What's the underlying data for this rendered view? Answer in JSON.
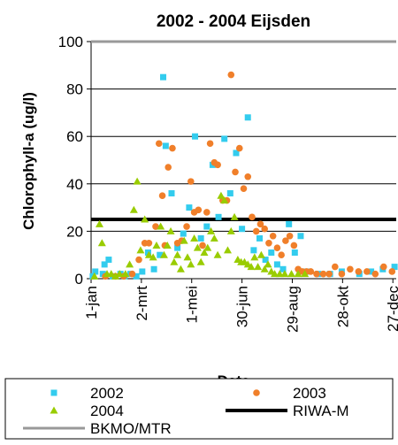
{
  "chart_data": {
    "type": "scatter",
    "title": "2002 - 2004 Eijsden",
    "xlabel": "Date",
    "ylabel": "Chlorophyll-a (ug/l)",
    "ylim": [
      0,
      100
    ],
    "xlim": [
      1,
      365
    ],
    "yticks": [
      0,
      20,
      40,
      60,
      80,
      100
    ],
    "xticks": [
      {
        "label": "1-jan",
        "day": 1
      },
      {
        "label": "2-mrt",
        "day": 61
      },
      {
        "label": "1-mei",
        "day": 121
      },
      {
        "label": "30-jun",
        "day": 181
      },
      {
        "label": "29-aug",
        "day": 241
      },
      {
        "label": "28-okt",
        "day": 301
      },
      {
        "label": "27-dec",
        "day": 361
      }
    ],
    "x_unit": "day of year",
    "grid": "horizontal",
    "legend_position": "bottom",
    "series": [
      {
        "name": "2002",
        "marker": "square",
        "color": "#33ccee",
        "points": [
          {
            "x": 3,
            "y": 1
          },
          {
            "x": 6,
            "y": 3
          },
          {
            "x": 15,
            "y": 2
          },
          {
            "x": 17,
            "y": 6
          },
          {
            "x": 22,
            "y": 8
          },
          {
            "x": 27,
            "y": 1
          },
          {
            "x": 36,
            "y": 2
          },
          {
            "x": 41,
            "y": 1
          },
          {
            "x": 48,
            "y": 2
          },
          {
            "x": 55,
            "y": 1
          },
          {
            "x": 62,
            "y": 3
          },
          {
            "x": 69,
            "y": 11
          },
          {
            "x": 76,
            "y": 4
          },
          {
            "x": 83,
            "y": 10
          },
          {
            "x": 87,
            "y": 85
          },
          {
            "x": 90,
            "y": 56
          },
          {
            "x": 97,
            "y": 36
          },
          {
            "x": 104,
            "y": 13
          },
          {
            "x": 111,
            "y": 19
          },
          {
            "x": 118,
            "y": 30
          },
          {
            "x": 125,
            "y": 60
          },
          {
            "x": 132,
            "y": 17
          },
          {
            "x": 139,
            "y": 22
          },
          {
            "x": 146,
            "y": 48
          },
          {
            "x": 153,
            "y": 26
          },
          {
            "x": 160,
            "y": 59
          },
          {
            "x": 167,
            "y": 36
          },
          {
            "x": 174,
            "y": 53
          },
          {
            "x": 181,
            "y": 21
          },
          {
            "x": 188,
            "y": 68
          },
          {
            "x": 195,
            "y": 12
          },
          {
            "x": 202,
            "y": 17
          },
          {
            "x": 209,
            "y": 8
          },
          {
            "x": 216,
            "y": 11
          },
          {
            "x": 223,
            "y": 6
          },
          {
            "x": 230,
            "y": 4
          },
          {
            "x": 237,
            "y": 23
          },
          {
            "x": 244,
            "y": 11
          },
          {
            "x": 251,
            "y": 18
          },
          {
            "x": 258,
            "y": 3
          },
          {
            "x": 272,
            "y": 2
          },
          {
            "x": 286,
            "y": 2
          },
          {
            "x": 300,
            "y": 3
          },
          {
            "x": 321,
            "y": 2
          },
          {
            "x": 335,
            "y": 3
          },
          {
            "x": 349,
            "y": 4
          },
          {
            "x": 363,
            "y": 5
          }
        ]
      },
      {
        "name": "2003",
        "marker": "circle",
        "color": "#f07f2a",
        "points": [
          {
            "x": 18,
            "y": 1
          },
          {
            "x": 30,
            "y": 1
          },
          {
            "x": 40,
            "y": 1
          },
          {
            "x": 50,
            "y": 2
          },
          {
            "x": 58,
            "y": 8
          },
          {
            "x": 65,
            "y": 15
          },
          {
            "x": 70,
            "y": 15
          },
          {
            "x": 78,
            "y": 22
          },
          {
            "x": 82,
            "y": 57
          },
          {
            "x": 86,
            "y": 35
          },
          {
            "x": 89,
            "y": 14
          },
          {
            "x": 93,
            "y": 47
          },
          {
            "x": 98,
            "y": 55
          },
          {
            "x": 104,
            "y": 15
          },
          {
            "x": 109,
            "y": 16
          },
          {
            "x": 115,
            "y": 22
          },
          {
            "x": 120,
            "y": 41
          },
          {
            "x": 124,
            "y": 28
          },
          {
            "x": 129,
            "y": 29
          },
          {
            "x": 134,
            "y": 14
          },
          {
            "x": 139,
            "y": 28
          },
          {
            "x": 143,
            "y": 57
          },
          {
            "x": 148,
            "y": 49
          },
          {
            "x": 152,
            "y": 48
          },
          {
            "x": 158,
            "y": 33
          },
          {
            "x": 163,
            "y": 33
          },
          {
            "x": 168,
            "y": 86
          },
          {
            "x": 173,
            "y": 45
          },
          {
            "x": 178,
            "y": 55
          },
          {
            "x": 183,
            "y": 38
          },
          {
            "x": 188,
            "y": 43
          },
          {
            "x": 193,
            "y": 26
          },
          {
            "x": 198,
            "y": 20
          },
          {
            "x": 203,
            "y": 23
          },
          {
            "x": 208,
            "y": 21
          },
          {
            "x": 213,
            "y": 15
          },
          {
            "x": 218,
            "y": 18
          },
          {
            "x": 223,
            "y": 13
          },
          {
            "x": 228,
            "y": 10
          },
          {
            "x": 233,
            "y": 16
          },
          {
            "x": 238,
            "y": 18
          },
          {
            "x": 243,
            "y": 14
          },
          {
            "x": 248,
            "y": 4
          },
          {
            "x": 253,
            "y": 3
          },
          {
            "x": 258,
            "y": 3
          },
          {
            "x": 263,
            "y": 3
          },
          {
            "x": 270,
            "y": 2
          },
          {
            "x": 278,
            "y": 2
          },
          {
            "x": 285,
            "y": 2
          },
          {
            "x": 292,
            "y": 5
          },
          {
            "x": 300,
            "y": 2
          },
          {
            "x": 310,
            "y": 4
          },
          {
            "x": 320,
            "y": 3
          },
          {
            "x": 330,
            "y": 3
          },
          {
            "x": 340,
            "y": 2
          },
          {
            "x": 350,
            "y": 5
          },
          {
            "x": 360,
            "y": 3
          }
        ]
      },
      {
        "name": "2004",
        "marker": "triangle",
        "color": "#99cc00",
        "points": [
          {
            "x": 5,
            "y": 1
          },
          {
            "x": 11,
            "y": 23
          },
          {
            "x": 14,
            "y": 15
          },
          {
            "x": 20,
            "y": 2
          },
          {
            "x": 25,
            "y": 2
          },
          {
            "x": 30,
            "y": 1
          },
          {
            "x": 35,
            "y": 2
          },
          {
            "x": 42,
            "y": 2
          },
          {
            "x": 47,
            "y": 6
          },
          {
            "x": 52,
            "y": 29
          },
          {
            "x": 56,
            "y": 41
          },
          {
            "x": 60,
            "y": 12
          },
          {
            "x": 65,
            "y": 25
          },
          {
            "x": 70,
            "y": 10
          },
          {
            "x": 75,
            "y": 9
          },
          {
            "x": 79,
            "y": 14
          },
          {
            "x": 84,
            "y": 22
          },
          {
            "x": 88,
            "y": 10
          },
          {
            "x": 92,
            "y": 14
          },
          {
            "x": 96,
            "y": 20
          },
          {
            "x": 100,
            "y": 7
          },
          {
            "x": 104,
            "y": 10
          },
          {
            "x": 108,
            "y": 4
          },
          {
            "x": 112,
            "y": 16
          },
          {
            "x": 116,
            "y": 9
          },
          {
            "x": 120,
            "y": 6
          },
          {
            "x": 124,
            "y": 17
          },
          {
            "x": 128,
            "y": 13
          },
          {
            "x": 132,
            "y": 7
          },
          {
            "x": 136,
            "y": 11
          },
          {
            "x": 140,
            "y": 13
          },
          {
            "x": 144,
            "y": 20
          },
          {
            "x": 148,
            "y": 17
          },
          {
            "x": 152,
            "y": 10
          },
          {
            "x": 156,
            "y": 35
          },
          {
            "x": 160,
            "y": 33
          },
          {
            "x": 164,
            "y": 12
          },
          {
            "x": 168,
            "y": 20
          },
          {
            "x": 172,
            "y": 26
          },
          {
            "x": 176,
            "y": 8
          },
          {
            "x": 180,
            "y": 7
          },
          {
            "x": 184,
            "y": 7
          },
          {
            "x": 188,
            "y": 6
          },
          {
            "x": 192,
            "y": 5
          },
          {
            "x": 196,
            "y": 9
          },
          {
            "x": 200,
            "y": 5
          },
          {
            "x": 204,
            "y": 10
          },
          {
            "x": 208,
            "y": 4
          },
          {
            "x": 212,
            "y": 6
          },
          {
            "x": 216,
            "y": 3
          },
          {
            "x": 220,
            "y": 2
          },
          {
            "x": 226,
            "y": 2
          },
          {
            "x": 232,
            "y": 2
          },
          {
            "x": 240,
            "y": 2
          },
          {
            "x": 248,
            "y": 2
          },
          {
            "x": 256,
            "y": 2
          }
        ]
      },
      {
        "name": "RIWA-M",
        "marker": "line",
        "color": "#000000",
        "value": 25
      },
      {
        "name": "BKMO/MTR",
        "marker": "line",
        "color": "#999999",
        "value": 100
      }
    ]
  }
}
